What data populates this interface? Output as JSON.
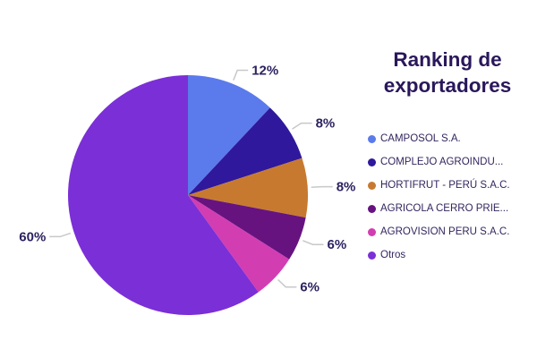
{
  "chart_data": {
    "type": "pie",
    "title": "Ranking de exportadores",
    "legend_position": "right",
    "start_angle_deg": 0,
    "direction": "clockwise",
    "total": 100,
    "slices": [
      {
        "label": "CAMPOSOL S.A.",
        "value": 12,
        "display": "12%",
        "color": "#5B7BEC"
      },
      {
        "label": "COMPLEJO AGROINDU...",
        "value": 8,
        "display": "8%",
        "color": "#2F189C"
      },
      {
        "label": "HORTIFRUT - PERÚ S.A.C.",
        "value": 8,
        "display": "8%",
        "color": "#C77A2F"
      },
      {
        "label": "AGRICOLA CERRO PRIE...",
        "value": 6,
        "display": "6%",
        "color": "#661380"
      },
      {
        "label": "AGROVISION PERU S.A.C.",
        "value": 6,
        "display": "6%",
        "color": "#D23DB2"
      },
      {
        "label": "Otros",
        "value": 60,
        "display": "60%",
        "color": "#7B2FD6"
      }
    ],
    "callout_line_color": "#C8C8C8",
    "label_text_color": "#2D2260",
    "title_color": "#2A175B"
  }
}
